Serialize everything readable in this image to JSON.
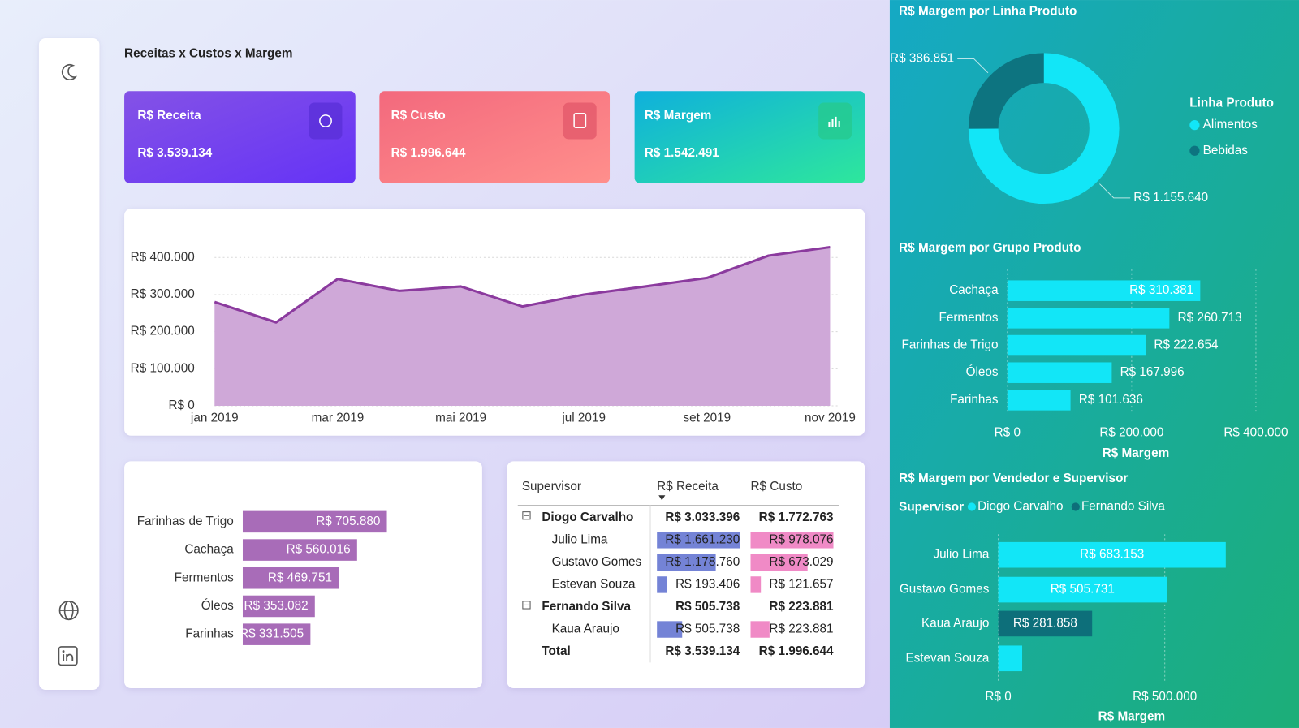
{
  "title": "Receitas x Custos x Margem",
  "kpis": [
    {
      "label": "R$ Receita",
      "value": "R$ 3.539.134"
    },
    {
      "label": "R$ Custo",
      "value": "R$ 1.996.644"
    },
    {
      "label": "R$ Margem",
      "value": "R$ 1.542.491"
    }
  ],
  "table": {
    "columns": [
      "Supervisor",
      "R$ Receita",
      "R$ Custo"
    ],
    "groups": [
      {
        "name": "Diogo Carvalho",
        "receita": "R$ 3.033.396",
        "custo": "R$ 1.772.763",
        "rows": [
          {
            "name": "Julio Lima",
            "receita": 1661230,
            "receita_label": "R$ 1.661.230",
            "custo": 978076,
            "custo_label": "R$ 978.076"
          },
          {
            "name": "Gustavo Gomes",
            "receita": 1178760,
            "receita_label": "R$ 1.178.760",
            "custo": 673029,
            "custo_label": "R$ 673.029"
          },
          {
            "name": "Estevan Souza",
            "receita": 193406,
            "receita_label": "R$ 193.406",
            "custo": 121657,
            "custo_label": "R$ 121.657"
          }
        ]
      },
      {
        "name": "Fernando Silva",
        "receita": "R$ 505.738",
        "custo": "R$ 223.881",
        "rows": [
          {
            "name": "Kaua Araujo",
            "receita": 505738,
            "receita_label": "R$ 505.738",
            "custo": 223881,
            "custo_label": "R$ 223.881"
          }
        ]
      }
    ],
    "total": {
      "name": "Total",
      "receita": "R$ 3.539.134",
      "custo": "R$ 1.996.644"
    }
  },
  "chart_data": [
    {
      "type": "area",
      "x": [
        "jan 2019",
        null,
        "mar 2019",
        null,
        "mai 2019",
        null,
        "jul 2019",
        null,
        "set 2019",
        null,
        "nov 2019"
      ],
      "values": [
        280000,
        225000,
        342000,
        310000,
        322000,
        268000,
        300000,
        322000,
        345000,
        405000,
        428000
      ],
      "color": "#8b3a9e",
      "fill_color": "#cfa8d8",
      "ylim": [
        0,
        440000
      ],
      "yticks": [
        {
          "value": 0,
          "label": "R$ 0"
        },
        {
          "value": 100000,
          "label": "R$ 100.000"
        },
        {
          "value": 200000,
          "label": "R$ 200.000"
        },
        {
          "value": 300000,
          "label": "R$ 300.000"
        },
        {
          "value": 400000,
          "label": "R$ 400.000"
        }
      ],
      "grid": true
    },
    {
      "type": "hbar",
      "categories": [
        "Farinhas de Trigo",
        "Cachaça",
        "Fermentos",
        "Óleos",
        "Farinhas"
      ],
      "values": [
        705880,
        560016,
        469751,
        353082,
        331505
      ],
      "value_labels": [
        "R$ 705.880",
        "R$ 560.016",
        "R$ 469.751",
        "R$ 353.082",
        "R$ 331.505"
      ],
      "color": "#a86cb8"
    },
    {
      "type": "donut",
      "title": "R$ Margem por Linha Produto",
      "legend_title": "Linha Produto",
      "categories": [
        "Alimentos",
        "Bebidas"
      ],
      "values": [
        1155640,
        386851
      ],
      "value_labels": [
        "R$ 1.155.640",
        "R$ 386.851"
      ],
      "colors": [
        "#12e6f7",
        "#0d7480"
      ]
    },
    {
      "type": "hbar",
      "title": "R$ Margem por Grupo Produto",
      "categories": [
        "Cachaça",
        "Fermentos",
        "Farinhas de Trigo",
        "Óleos",
        "Farinhas"
      ],
      "values": [
        310381,
        260713,
        222654,
        167996,
        101636
      ],
      "value_labels": [
        "R$ 310.381",
        "R$ 260.713",
        "R$ 222.654",
        "R$ 167.996",
        "R$ 101.636"
      ],
      "color": "#12e6f7",
      "xlim": [
        0,
        400000
      ],
      "xticks": [
        {
          "value": 0,
          "label": "R$ 0"
        },
        {
          "value": 200000,
          "label": "R$ 200.000"
        },
        {
          "value": 400000,
          "label": "R$ 400.000"
        }
      ],
      "xlabel": "R$ Margem",
      "grid": true
    },
    {
      "type": "hbar",
      "title": "R$ Margem por Vendedor e Supervisor",
      "legend_title": "Supervisor",
      "categories": [
        "Julio Lima",
        "Gustavo Gomes",
        "Kaua Araujo",
        "Estevan Souza"
      ],
      "series": [
        {
          "name": "Diogo Carvalho",
          "color": "#12e6f7",
          "values": [
            683153,
            505731,
            null,
            71749
          ],
          "value_labels": [
            "R$ 683.153",
            "R$ 505.731",
            null,
            null
          ]
        },
        {
          "name": "Fernando Silva",
          "color": "#0d6f7a",
          "values": [
            null,
            null,
            281858,
            null
          ],
          "value_labels": [
            null,
            null,
            "R$ 281.858",
            null
          ]
        }
      ],
      "xlim": [
        0,
        800000
      ],
      "xticks": [
        {
          "value": 0,
          "label": "R$ 0"
        },
        {
          "value": 500000,
          "label": "R$ 500.000"
        }
      ],
      "xlabel": "R$ Margem",
      "grid": true
    }
  ]
}
